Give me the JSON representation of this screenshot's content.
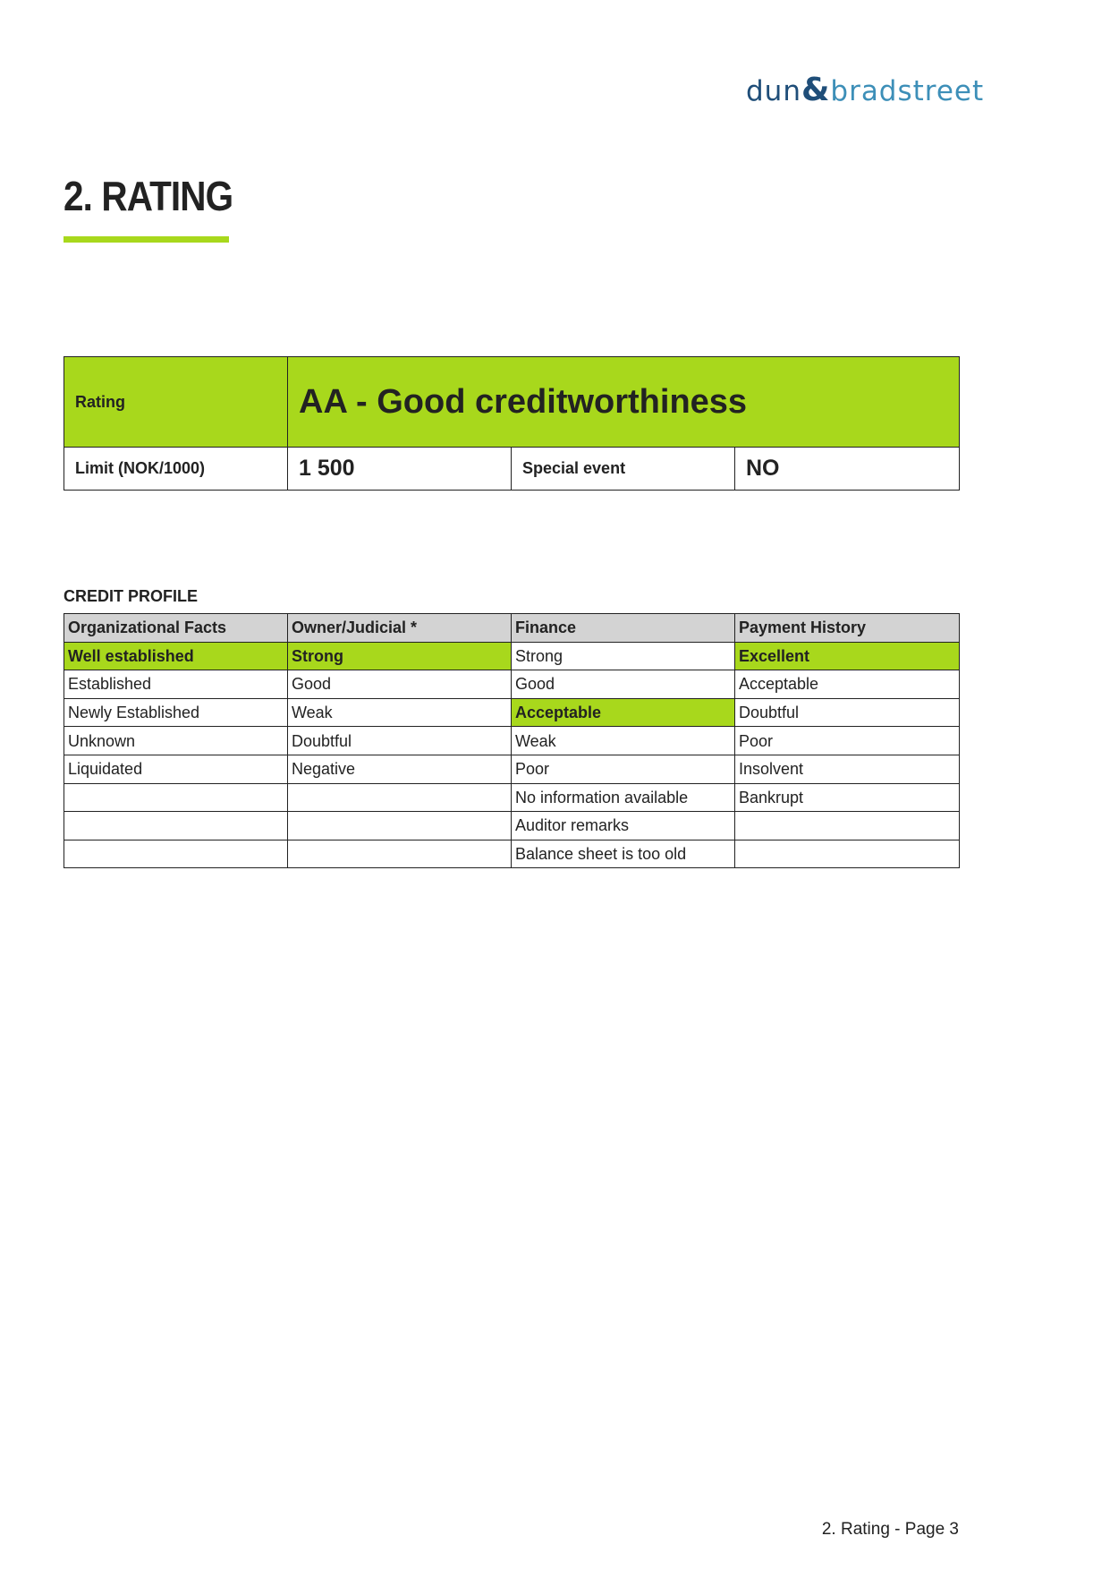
{
  "logo": {
    "part1": "dun",
    "amp": "&",
    "part2": "bradstreet"
  },
  "title": "2. RATING",
  "colors": {
    "accent": "#a8d81c",
    "header_grey": "#d3d3d3"
  },
  "rating": {
    "label": "Rating",
    "value": "AA - Good creditworthiness",
    "limit_label": "Limit (NOK/1000)",
    "limit_value": "1 500",
    "special_event_label": "Special event",
    "special_event_value": "NO"
  },
  "credit_profile": {
    "label": "CREDIT PROFILE",
    "headers": [
      "Organizational Facts",
      "Owner/Judicial *",
      "Finance",
      "Payment History"
    ],
    "rows": [
      [
        "Well established",
        "Strong",
        "Strong",
        "Excellent"
      ],
      [
        "Established",
        "Good",
        "Good",
        "Acceptable"
      ],
      [
        "Newly Established",
        "Weak",
        "Acceptable",
        "Doubtful"
      ],
      [
        "Unknown",
        "Doubtful",
        "Weak",
        "Poor"
      ],
      [
        "Liquidated",
        "Negative",
        "Poor",
        "Insolvent"
      ],
      [
        "",
        "",
        "No information available",
        "Bankrupt"
      ],
      [
        "",
        "",
        "Auditor remarks",
        ""
      ],
      [
        "",
        "",
        "Balance sheet is too old",
        ""
      ]
    ],
    "highlighted": [
      [
        0,
        0
      ],
      [
        0,
        1
      ],
      [
        0,
        3
      ],
      [
        2,
        2
      ]
    ]
  },
  "footer": "2. Rating - Page 3"
}
